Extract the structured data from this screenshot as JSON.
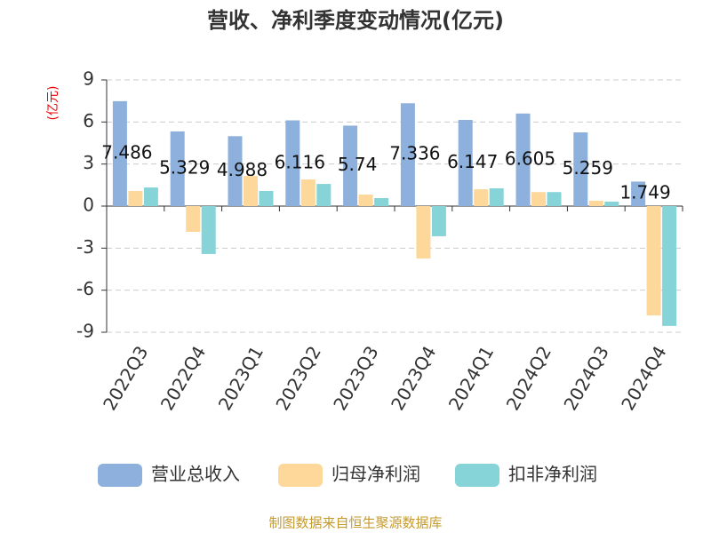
{
  "chart_data": {
    "type": "bar",
    "title": "营收、净利季度变动情况(亿元)",
    "y_axis_label": "(亿元)",
    "source": "制图数据来自恒生聚源数据库",
    "categories": [
      "2022Q3",
      "2022Q4",
      "2023Q1",
      "2023Q2",
      "2023Q3",
      "2023Q4",
      "2024Q1",
      "2024Q2",
      "2024Q3",
      "2024Q4"
    ],
    "series": [
      {
        "name": "营业总收入",
        "color": "#8eb0dc",
        "values": [
          7.486,
          5.329,
          4.988,
          6.116,
          5.74,
          7.336,
          6.147,
          6.605,
          5.259,
          1.749
        ],
        "show_labels": true
      },
      {
        "name": "归母净利润",
        "color": "#fdd89a",
        "values": [
          1.08,
          -1.84,
          2.15,
          1.9,
          0.82,
          -3.74,
          1.2,
          1.0,
          0.38,
          -7.8
        ]
      },
      {
        "name": "扣非净利润",
        "color": "#86d4d8",
        "values": [
          1.33,
          -3.42,
          1.08,
          1.58,
          0.57,
          -2.15,
          1.27,
          1.0,
          0.32,
          -8.55
        ]
      }
    ],
    "ylim": [
      -9,
      9
    ],
    "yticks": [
      -9,
      -6,
      -3,
      0,
      3,
      6,
      9
    ],
    "grid": true
  }
}
